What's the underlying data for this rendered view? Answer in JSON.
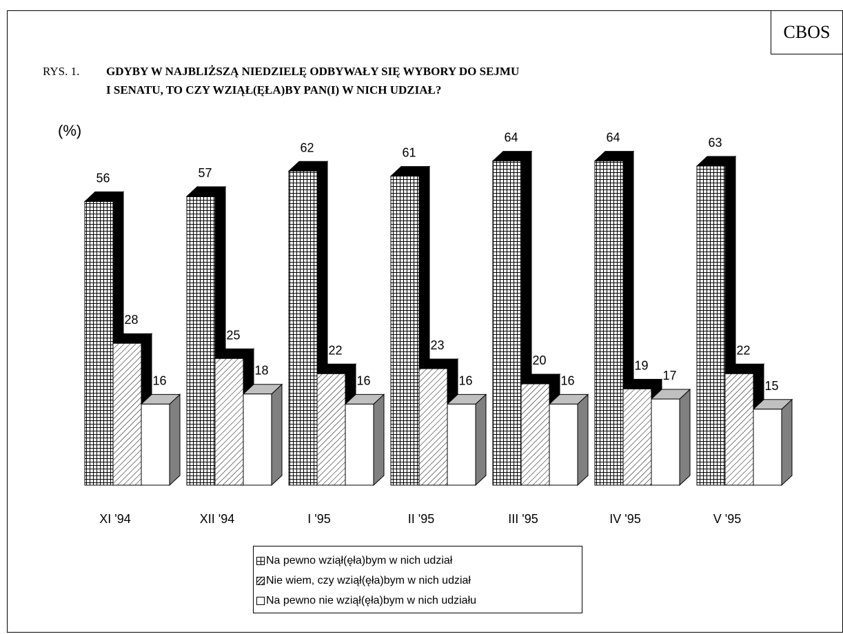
{
  "logo": "CBOS",
  "title": {
    "prefix": "RYS. 1.",
    "line1": "GDYBY W NAJBLIŻSZĄ NIEDZIELĘ ODBYWAŁY SIĘ WYBORY DO SEJMU",
    "line2": "I SENATU, TO CZY WZIĄŁ(ĘŁA)BY PAN(I) W NICH UDZIAŁ?"
  },
  "unit_label": "(%)",
  "chart_data": {
    "type": "bar",
    "title": "GDYBY W NAJBLIŻSZĄ NIEDZIELĘ ODBYWAŁY SIĘ WYBORY DO SEJMU I SENATU, TO CZY WZIĄŁ(ĘŁA)BY PAN(I) W NICH UDZIAŁ?",
    "ylabel": "(%)",
    "xlabel": "",
    "ylim": [
      0,
      70
    ],
    "grid": false,
    "legend_position": "bottom",
    "categories": [
      "XI '94",
      "XII '94",
      "I '95",
      "II '95",
      "III '95",
      "IV '95",
      "V '95"
    ],
    "series": [
      {
        "name": "Na pewno wziął(ęła)bym w nich udział",
        "pattern": "grid",
        "values": [
          56,
          57,
          62,
          61,
          64,
          64,
          63
        ]
      },
      {
        "name": "Nie wiem, czy wziął(ęła)bym w nich udział",
        "pattern": "hatch",
        "values": [
          28,
          25,
          22,
          23,
          20,
          19,
          22
        ]
      },
      {
        "name": "Na pewno nie wziął(ęła)bym w nich udziału",
        "pattern": "blank",
        "values": [
          16,
          18,
          16,
          16,
          16,
          17,
          15
        ]
      }
    ],
    "colors": {
      "edge": "#000000",
      "side_face": "#808080",
      "top_face": "#c0c0c0",
      "shadow": "#000000",
      "fill": "#ffffff"
    }
  }
}
